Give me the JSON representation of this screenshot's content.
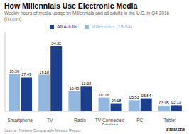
{
  "chart_data": {
    "type": "bar",
    "title": "How Millennials Use Electronic Media",
    "subtitle": "Weekly hours of media usage by Millennials and all adults in the U.S. in Q4 2016 (hh:mm)",
    "categories": [
      "Smartphone",
      "TV",
      "Radio",
      "TV-Connected\nDevices",
      "PC",
      "Tablet"
    ],
    "series": [
      {
        "name": "Millennials (18-34)",
        "color": "#92b8e0",
        "values": [
          19.65,
          19.3,
          10.67,
          7.27,
          5.88,
          3.08
        ],
        "value_labels": [
          "19:39",
          "19:18",
          "10:40",
          "07:16",
          "05:53",
          "03:05"
        ]
      },
      {
        "name": "All Adults",
        "color": "#1b3f8c",
        "values": [
          17.82,
          34.53,
          13.03,
          4.3,
          6.9,
          3.22
        ],
        "value_labels": [
          "17:49",
          "34:32",
          "13:02",
          "04:18",
          "06:54",
          "03:13"
        ]
      }
    ],
    "ylim": [
      0,
      42
    ],
    "yticks": [],
    "tick_labels": "x",
    "data_labels": true,
    "legend": "top",
    "source": "Source: Nielsen Comparable Metrics Report",
    "annotations": [
      "statista"
    ]
  }
}
